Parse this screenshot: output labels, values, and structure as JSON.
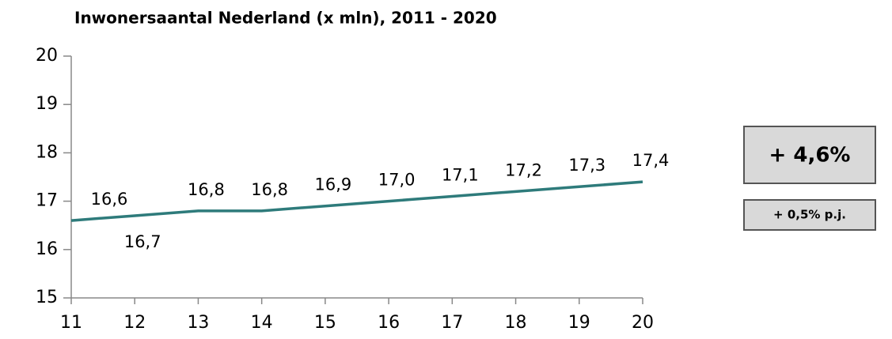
{
  "chart_data": {
    "type": "line",
    "title": "Inwonersaantal Nederland (x mln), 2011 - 2020",
    "categories": [
      "11",
      "12",
      "13",
      "14",
      "15",
      "16",
      "17",
      "18",
      "19",
      "20"
    ],
    "series": [
      {
        "name": "Inwonersaantal",
        "color": "#2e7b7b",
        "values": [
          16.6,
          16.7,
          16.8,
          16.8,
          16.9,
          17.0,
          17.1,
          17.2,
          17.3,
          17.4
        ],
        "value_labels": [
          "16,6",
          "16,7",
          "16,8",
          "16,8",
          "16,9",
          "17,0",
          "17,1",
          "17,2",
          "17,3",
          "17,4"
        ]
      }
    ],
    "ylim": [
      15,
      20
    ],
    "yticks": [
      15,
      16,
      17,
      18,
      19,
      20
    ],
    "grid": false,
    "annotations": [
      "+ 4,6%",
      "+ 0,5% p.j."
    ]
  }
}
